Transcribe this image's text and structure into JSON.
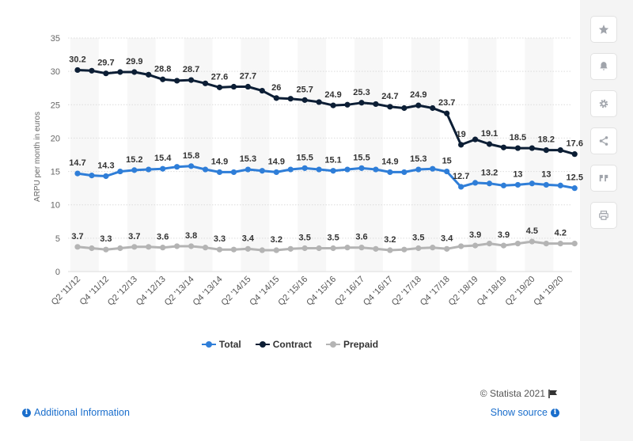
{
  "chart_data": {
    "type": "line",
    "title": "",
    "xlabel": "",
    "ylabel": "ARPU per month in euros",
    "ylim": [
      0,
      35
    ],
    "yticks": [
      0,
      5,
      10,
      15,
      20,
      25,
      30,
      35
    ],
    "grid": true,
    "legend_position": "bottom-center",
    "x": [
      "Q2 '11/12",
      "Q3 '11/12",
      "Q4 '11/12",
      "Q1 '12/13",
      "Q2 '12/13",
      "Q3 '12/13",
      "Q4 '12/13",
      "Q1 '13/14",
      "Q2 '13/14",
      "Q3 '13/14",
      "Q4 '13/14",
      "Q1 '14/15",
      "Q2 '14/15",
      "Q3 '14/15",
      "Q4 '14/15",
      "Q1 '15/16",
      "Q2 '15/16",
      "Q3 '15/16",
      "Q4 '15/16",
      "Q1 '16/17",
      "Q2 '16/17",
      "Q3 '16/17",
      "Q4 '16/17",
      "Q1 '17/18",
      "Q2 '17/18",
      "Q3 '17/18",
      "Q4 '17/18",
      "Q1 '18/19",
      "Q2 '18/19",
      "Q3 '18/19",
      "Q4 '18/19",
      "Q1 '19/20",
      "Q2 '19/20",
      "Q3 '19/20",
      "Q4 '19/20",
      "Q1 '20/21"
    ],
    "xtick_labels": [
      "Q2 '11/12",
      "Q4 '11/12",
      "Q2 '12/13",
      "Q4 '12/13",
      "Q2 '13/14",
      "Q4 '13/14",
      "Q2 '14/15",
      "Q4 '14/15",
      "Q2 '15/16",
      "Q4 '15/16",
      "Q2 '16/17",
      "Q4 '16/17",
      "Q2 '17/18",
      "Q4 '17/18",
      "Q2 '18/19",
      "Q4 '18/19",
      "Q2 '19/20",
      "Q4 '19/20"
    ],
    "series": [
      {
        "name": "Total",
        "color": "#2f7ed8",
        "values": [
          14.7,
          14.4,
          14.3,
          15.0,
          15.2,
          15.3,
          15.4,
          15.7,
          15.8,
          15.3,
          14.9,
          14.9,
          15.3,
          15.1,
          14.9,
          15.3,
          15.5,
          15.3,
          15.1,
          15.3,
          15.5,
          15.3,
          14.9,
          14.9,
          15.3,
          15.4,
          15.0,
          12.7,
          13.3,
          13.2,
          12.9,
          13.0,
          13.2,
          13.0,
          12.9,
          12.5
        ],
        "labels": {
          "0": "14.7",
          "2": "14.3",
          "4": "15.2",
          "6": "15.4",
          "8": "15.8",
          "10": "14.9",
          "12": "15.3",
          "14": "14.9",
          "16": "15.5",
          "18": "15.1",
          "20": "15.5",
          "22": "14.9",
          "24": "15.3",
          "26": "15",
          "27": "12.7",
          "29": "13.2",
          "31": "13",
          "33": "13",
          "35": "12.5"
        }
      },
      {
        "name": "Contract",
        "color": "#0c1e35",
        "values": [
          30.2,
          30.1,
          29.7,
          29.9,
          29.9,
          29.5,
          28.8,
          28.6,
          28.7,
          28.2,
          27.6,
          27.7,
          27.7,
          27.1,
          26.0,
          25.9,
          25.7,
          25.4,
          24.9,
          25.0,
          25.3,
          25.1,
          24.7,
          24.5,
          24.9,
          24.5,
          23.7,
          19.0,
          19.8,
          19.1,
          18.6,
          18.5,
          18.5,
          18.2,
          18.2,
          17.6
        ],
        "labels": {
          "0": "30.2",
          "2": "29.7",
          "4": "29.9",
          "6": "28.8",
          "8": "28.7",
          "10": "27.6",
          "12": "27.7",
          "14": "26",
          "16": "25.7",
          "18": "24.9",
          "20": "25.3",
          "22": "24.7",
          "24": "24.9",
          "26": "23.7",
          "27": "19",
          "29": "19.1",
          "31": "18.5",
          "33": "18.2",
          "35": "17.6"
        }
      },
      {
        "name": "Prepaid",
        "color": "#b4b4b4",
        "values": [
          3.7,
          3.5,
          3.3,
          3.5,
          3.7,
          3.7,
          3.6,
          3.8,
          3.8,
          3.6,
          3.3,
          3.3,
          3.4,
          3.2,
          3.2,
          3.4,
          3.5,
          3.5,
          3.5,
          3.6,
          3.6,
          3.4,
          3.2,
          3.3,
          3.5,
          3.6,
          3.4,
          3.8,
          3.9,
          4.2,
          3.9,
          4.2,
          4.5,
          4.2,
          4.2,
          4.2
        ],
        "labels": {
          "0": "3.7",
          "2": "3.3",
          "4": "3.7",
          "6": "3.6",
          "8": "3.8",
          "10": "3.3",
          "12": "3.4",
          "14": "3.2",
          "16": "3.5",
          "18": "3.5",
          "20": "3.6",
          "22": "3.2",
          "24": "3.5",
          "26": "3.4",
          "28": "3.9",
          "30": "3.9",
          "32": "4.5",
          "34": "4.2"
        }
      }
    ]
  },
  "legend": {
    "items": [
      "Total",
      "Contract",
      "Prepaid"
    ]
  },
  "footer": {
    "credit": "© Statista 2021",
    "additional_info": "Additional Information",
    "show_source": "Show source"
  },
  "sidebar": {
    "buttons": [
      "star-icon",
      "bell-icon",
      "gear-icon",
      "share-icon",
      "quote-icon",
      "print-icon"
    ]
  }
}
